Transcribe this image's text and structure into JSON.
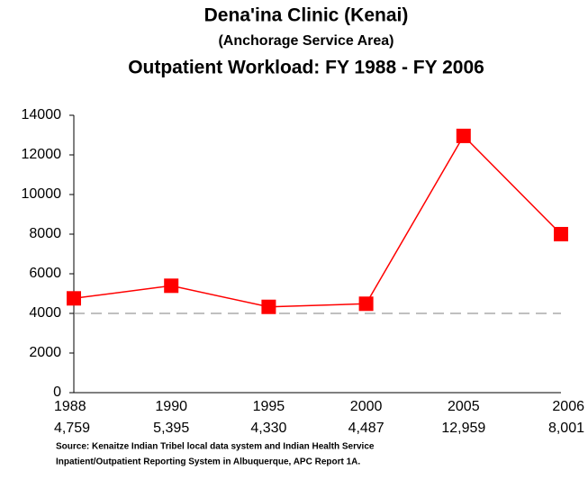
{
  "chart_data": {
    "type": "line",
    "title": "Dena'ina Clinic (Kenai)",
    "subtitle": "(Anchorage Service Area)",
    "subtitle2": "Outpatient Workload:  FY 1988 - FY 2006",
    "categories": [
      "1988",
      "1990",
      "1995",
      "2000",
      "2005",
      "2006"
    ],
    "values": [
      4759,
      5395,
      4330,
      4487,
      12959,
      8001
    ],
    "value_labels": [
      "4,759",
      "5,395",
      "4,330",
      "4,487",
      "12,959",
      "8,001"
    ],
    "color": "#ff0000",
    "reference_line": 4000,
    "ylim": [
      0,
      14000
    ],
    "yticks": [
      0,
      2000,
      4000,
      6000,
      8000,
      10000,
      12000,
      14000
    ],
    "grid": false,
    "source": [
      "Source:  Kenaitze Indian Tribel local data system and Indian Health Service",
      "Inpatient/Outpatient Reporting System in Albuquerque, APC Report 1A."
    ]
  }
}
